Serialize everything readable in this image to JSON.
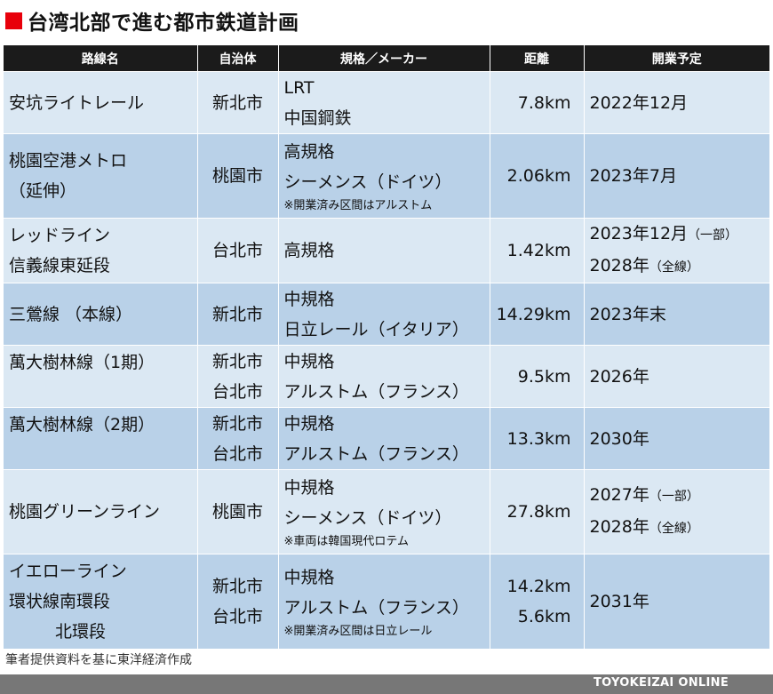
{
  "title": "台湾北部で進む都市鉄道計画",
  "headers": [
    "路線名",
    "自治体",
    "規格／メーカー",
    "距離",
    "開業予定"
  ],
  "rows": [
    {
      "name": [
        "安坑ライトレール"
      ],
      "city": [
        "新北市"
      ],
      "spec": [
        "LRT",
        "中国鋼鉄"
      ],
      "note": "",
      "dist": [
        "7.8km"
      ],
      "open": [
        {
          "main": "2022年12月",
          "sub": ""
        }
      ]
    },
    {
      "name": [
        "桃園空港メトロ",
        "（延伸）"
      ],
      "city": [
        "桃園市"
      ],
      "spec": [
        "高規格",
        "シーメンス（ドイツ）"
      ],
      "note": "※開業済み区間はアルストム",
      "dist": [
        "2.06km"
      ],
      "open": [
        {
          "main": "2023年7月",
          "sub": ""
        }
      ]
    },
    {
      "name": [
        "レッドライン",
        "信義線東延段"
      ],
      "city": [
        "台北市"
      ],
      "spec": [
        "高規格"
      ],
      "note": "",
      "dist": [
        "1.42km"
      ],
      "open": [
        {
          "main": "2023年12月",
          "sub": "（一部）"
        },
        {
          "main": "2028年",
          "sub": "（全線）"
        }
      ]
    },
    {
      "name": [
        "三鶯線 （本線）"
      ],
      "city": [
        "新北市"
      ],
      "spec": [
        "中規格",
        "日立レール（イタリア）"
      ],
      "note": "",
      "dist": [
        "14.29km"
      ],
      "open": [
        {
          "main": "2023年末",
          "sub": ""
        }
      ]
    },
    {
      "name": [
        "萬大樹林線（1期）"
      ],
      "city": [
        "新北市",
        "台北市"
      ],
      "spec": [
        "中規格",
        "アルストム（フランス）"
      ],
      "note": "",
      "dist": [
        "9.5km"
      ],
      "open": [
        {
          "main": "2026年",
          "sub": ""
        }
      ]
    },
    {
      "name": [
        "萬大樹林線（2期）"
      ],
      "city": [
        "新北市",
        "台北市"
      ],
      "spec": [
        "中規格",
        "アルストム（フランス）"
      ],
      "note": "",
      "dist": [
        "13.3km"
      ],
      "open": [
        {
          "main": "2030年",
          "sub": ""
        }
      ]
    },
    {
      "name": [
        "桃園グリーンライン"
      ],
      "city": [
        "桃園市"
      ],
      "spec": [
        "中規格",
        "シーメンス（ドイツ）"
      ],
      "note": "※車両は韓国現代ロテム",
      "dist": [
        "27.8km"
      ],
      "open": [
        {
          "main": "2027年",
          "sub": "（一部）"
        },
        {
          "main": "2028年",
          "sub": "（全線）"
        }
      ]
    },
    {
      "name": [
        "イエローライン",
        "環状線南環段",
        "北環段"
      ],
      "city": [
        "新北市",
        "台北市"
      ],
      "spec": [
        "中規格",
        "アルストム（フランス）"
      ],
      "note": "※開業済み区間は日立レール",
      "dist": [
        "14.2km",
        "5.6km"
      ],
      "open": [
        {
          "main": "2031年",
          "sub": ""
        }
      ]
    }
  ],
  "footer_note": "筆者提供資料を基に東洋経済作成",
  "brand": "TOYOKEIZAI ONLINE"
}
